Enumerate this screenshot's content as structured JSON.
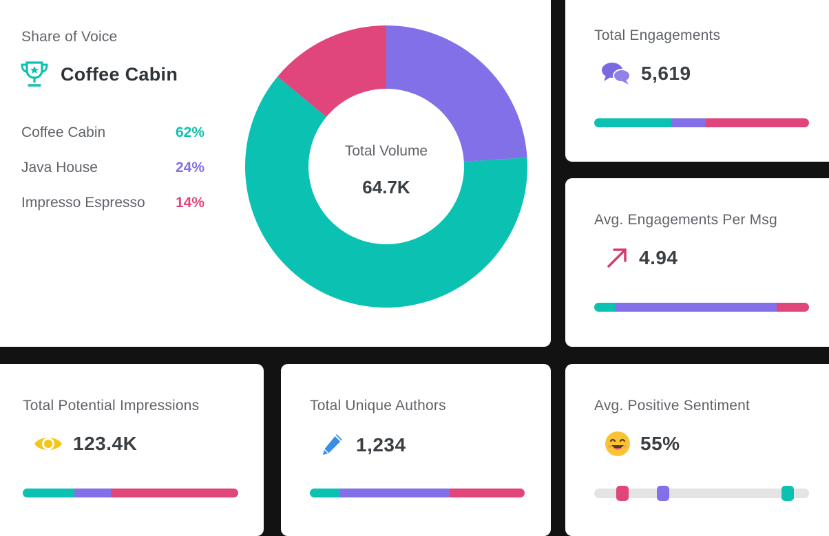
{
  "colors": {
    "teal": "#0bc2b2",
    "purple": "#8270e8",
    "pink": "#e0457b"
  },
  "share_of_voice": {
    "title": "Share of Voice",
    "brand": "Coffee Cabin",
    "brand_icon": "trophy-icon",
    "legend": [
      {
        "name": "Coffee Cabin",
        "pct": "62%",
        "value": 62,
        "color": "#0bc2b2"
      },
      {
        "name": "Java House",
        "pct": "24%",
        "value": 24,
        "color": "#8270e8"
      },
      {
        "name": "Impresso Espresso",
        "pct": "14%",
        "value": 14,
        "color": "#e0457b"
      }
    ],
    "donut_center_title": "Total Volume",
    "donut_center_value": "64.7K"
  },
  "total_engagements": {
    "title": "Total Engagements",
    "value": "5,619",
    "icon": "chat-bubbles-icon",
    "bar": [
      36,
      16,
      48
    ]
  },
  "avg_engagements": {
    "title": "Avg. Engagements Per Msg",
    "value": "4.94",
    "icon": "trend-up-arrow-icon",
    "bar": [
      10,
      75,
      15
    ]
  },
  "impressions": {
    "title": "Total Potential Impressions",
    "value": "123.4K",
    "icon": "eye-icon",
    "bar": [
      24,
      17,
      59
    ]
  },
  "authors": {
    "title": "Total Unique Authors",
    "value": "1,234",
    "icon": "pencil-icon",
    "bar": [
      14,
      51,
      35
    ]
  },
  "sentiment": {
    "title": "Avg. Positive Sentiment",
    "value": "55%",
    "icon": "smiling-face-icon",
    "markers": [
      {
        "brand": "Impresso Espresso",
        "position": 0.13,
        "color": "#e0457b"
      },
      {
        "brand": "Java House",
        "position": 0.32,
        "color": "#8270e8"
      },
      {
        "brand": "Coffee Cabin",
        "position": 0.9,
        "color": "#0bc2b2"
      }
    ]
  }
}
